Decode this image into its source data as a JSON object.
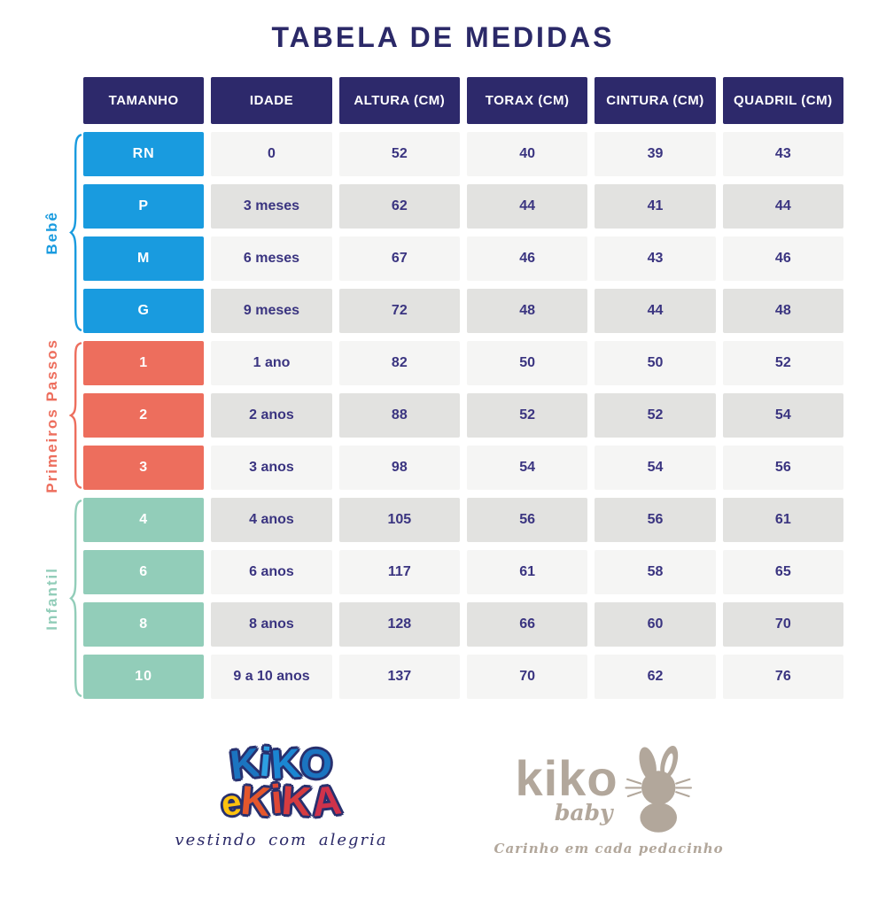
{
  "title": "TABELA DE MEDIDAS",
  "colors": {
    "header_bg": "#2d296b",
    "value_text": "#3a3480",
    "row_light": "#f5f5f4",
    "row_gray": "#e2e2e0",
    "bebe": "#199bdf",
    "primeiros_passos": "#ed6e5d",
    "infantil": "#92cdb9",
    "logo_navy": "#2b2968",
    "logo_blue": "#1b7fca",
    "logo_yellow": "#ffc20e",
    "logo_red": "#d8413d",
    "logo_taupe": "#b2a79b"
  },
  "table": {
    "headers": [
      "TAMANHO",
      "IDADE",
      "ALTURA (CM)",
      "TORAX (CM)",
      "CINTURA (CM)",
      "QUADRIL (CM)"
    ],
    "groups": [
      {
        "label": "Bebê",
        "color": "#199bdf",
        "rows": [
          {
            "size": "RN",
            "idade": "0",
            "altura": "52",
            "torax": "40",
            "cintura": "39",
            "quadril": "43"
          },
          {
            "size": "P",
            "idade": "3 meses",
            "altura": "62",
            "torax": "44",
            "cintura": "41",
            "quadril": "44"
          },
          {
            "size": "M",
            "idade": "6 meses",
            "altura": "67",
            "torax": "46",
            "cintura": "43",
            "quadril": "46"
          },
          {
            "size": "G",
            "idade": "9 meses",
            "altura": "72",
            "torax": "48",
            "cintura": "44",
            "quadril": "48"
          }
        ]
      },
      {
        "label": "Primeiros Passos",
        "color": "#ed6e5d",
        "rows": [
          {
            "size": "1",
            "idade": "1 ano",
            "altura": "82",
            "torax": "50",
            "cintura": "50",
            "quadril": "52"
          },
          {
            "size": "2",
            "idade": "2 anos",
            "altura": "88",
            "torax": "52",
            "cintura": "52",
            "quadril": "54"
          },
          {
            "size": "3",
            "idade": "3 anos",
            "altura": "98",
            "torax": "54",
            "cintura": "54",
            "quadril": "56"
          }
        ]
      },
      {
        "label": "Infantil",
        "color": "#92cdb9",
        "rows": [
          {
            "size": "4",
            "idade": "4 anos",
            "altura": "105",
            "torax": "56",
            "cintura": "56",
            "quadril": "61"
          },
          {
            "size": "6",
            "idade": "6 anos",
            "altura": "117",
            "torax": "61",
            "cintura": "58",
            "quadril": "65"
          },
          {
            "size": "8",
            "idade": "8 anos",
            "altura": "128",
            "torax": "66",
            "cintura": "60",
            "quadril": "70"
          },
          {
            "size": "10",
            "idade": "9 a 10 anos",
            "altura": "137",
            "torax": "70",
            "cintura": "62",
            "quadril": "76"
          }
        ]
      }
    ]
  },
  "footer": {
    "kiko_e_kika": {
      "line1": "KiKO",
      "line2_e": "e",
      "line2": "KiKA",
      "tagline": "vestindo com alegria"
    },
    "kiko_baby": {
      "name": "kiko",
      "sub": "baby",
      "tagline": "Carinho em cada pedacinho"
    }
  }
}
